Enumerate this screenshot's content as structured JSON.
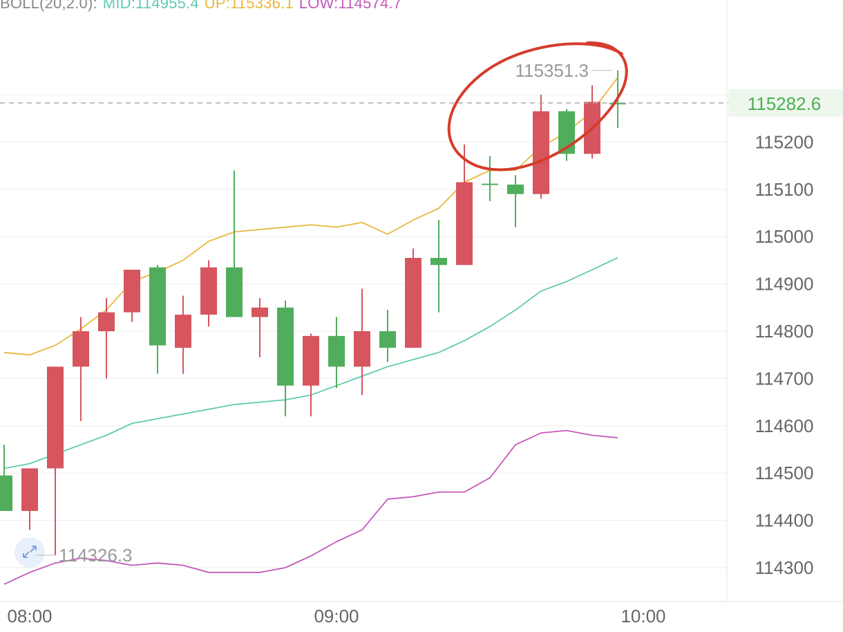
{
  "legend": {
    "indicator": "BOLL(20,2.0):",
    "mid_label": "MID:114955.4",
    "up_label": "UP:115336.1",
    "low_label": "LOW:114574.7"
  },
  "colors": {
    "up_candle": "#50ad5c",
    "down_candle": "#d6555e",
    "mid_line": "#5fc9b1",
    "upper_line": "#e8b73c",
    "lower_line": "#c457bd",
    "grid": "#eeeeee",
    "axis_text": "#666666",
    "last_price": "#4caf50",
    "annotation_circle": "#d63c2a",
    "legend_gray": "#888888"
  },
  "chart_data": {
    "type": "candlestick",
    "timeframe": "5m",
    "y_axis_ticks": [
      114300,
      114400,
      114500,
      114600,
      114700,
      114800,
      114900,
      115000,
      115100,
      115200
    ],
    "y_axis_tick_labels": [
      "114300",
      "114400",
      "114500",
      "114600",
      "114700",
      "114800",
      "114900",
      "115000",
      "115100",
      "115200"
    ],
    "ylim": [
      114260,
      115380
    ],
    "x_axis_ticks": [
      "08:00",
      "09:00",
      "10:00"
    ],
    "x_axis_tick_times_min": [
      480,
      540,
      600
    ],
    "last_price": 115282.6,
    "last_price_label": "115282.6",
    "max_marker": {
      "value": 115351.3,
      "label": "115351.3",
      "time_min": 595
    },
    "min_marker": {
      "value": 114326.3,
      "label": "114326.3",
      "time_min": 480
    },
    "candles": [
      {
        "t": 475,
        "o": 114420,
        "h": 114560,
        "l": 114420,
        "c": 114495
      },
      {
        "t": 480,
        "o": 114510,
        "h": 114510,
        "l": 114380,
        "c": 114420
      },
      {
        "t": 485,
        "o": 114725,
        "h": 114725,
        "l": 114326.3,
        "c": 114510
      },
      {
        "t": 490,
        "o": 114800,
        "h": 114830,
        "l": 114610,
        "c": 114725
      },
      {
        "t": 495,
        "o": 114840,
        "h": 114870,
        "l": 114700,
        "c": 114800
      },
      {
        "t": 500,
        "o": 114930,
        "h": 114930,
        "l": 114820,
        "c": 114840
      },
      {
        "t": 505,
        "o": 114770,
        "h": 114940,
        "l": 114710,
        "c": 114935
      },
      {
        "t": 510,
        "o": 114835,
        "h": 114875,
        "l": 114710,
        "c": 114765
      },
      {
        "t": 515,
        "o": 114935,
        "h": 114950,
        "l": 114810,
        "c": 114835
      },
      {
        "t": 520,
        "o": 114830,
        "h": 115140,
        "l": 114830,
        "c": 114935
      },
      {
        "t": 525,
        "o": 114850,
        "h": 114870,
        "l": 114745,
        "c": 114830
      },
      {
        "t": 530,
        "o": 114685,
        "h": 114865,
        "l": 114620,
        "c": 114850
      },
      {
        "t": 535,
        "o": 114790,
        "h": 114795,
        "l": 114620,
        "c": 114685
      },
      {
        "t": 540,
        "o": 114725,
        "h": 114830,
        "l": 114680,
        "c": 114790
      },
      {
        "t": 545,
        "o": 114800,
        "h": 114890,
        "l": 114665,
        "c": 114725
      },
      {
        "t": 550,
        "o": 114765,
        "h": 114845,
        "l": 114735,
        "c": 114800
      },
      {
        "t": 555,
        "o": 114955,
        "h": 114975,
        "l": 114765,
        "c": 114765
      },
      {
        "t": 560,
        "o": 114940,
        "h": 115035,
        "l": 114840,
        "c": 114955
      },
      {
        "t": 565,
        "o": 115115,
        "h": 115195,
        "l": 114940,
        "c": 114940
      },
      {
        "t": 570,
        "o": 115110,
        "h": 115170,
        "l": 115075,
        "c": 115112
      },
      {
        "t": 575,
        "o": 115090,
        "h": 115130,
        "l": 115020,
        "c": 115110
      },
      {
        "t": 580,
        "o": 115265,
        "h": 115300,
        "l": 115080,
        "c": 115090
      },
      {
        "t": 585,
        "o": 115175,
        "h": 115270,
        "l": 115160,
        "c": 115265
      },
      {
        "t": 590,
        "o": 115285,
        "h": 115320,
        "l": 115165,
        "c": 115175
      },
      {
        "t": 595,
        "o": 115280,
        "h": 115351.3,
        "l": 115230,
        "c": 115282.6
      }
    ],
    "series": [
      {
        "name": "UP",
        "t": [
          475,
          480,
          485,
          490,
          495,
          500,
          505,
          510,
          515,
          520,
          525,
          530,
          535,
          540,
          545,
          550,
          555,
          560,
          565,
          570,
          575,
          580,
          585,
          590,
          595
        ],
        "values": [
          114755,
          114750,
          114770,
          114805,
          114845,
          114905,
          114925,
          114950,
          114990,
          115010,
          115015,
          115020,
          115025,
          115020,
          115030,
          115005,
          115035,
          115060,
          115115,
          115140,
          115140,
          115190,
          115220,
          115265,
          115336.1
        ]
      },
      {
        "name": "MID",
        "t": [
          475,
          480,
          485,
          490,
          495,
          500,
          505,
          510,
          515,
          520,
          525,
          530,
          535,
          540,
          545,
          550,
          555,
          560,
          565,
          570,
          575,
          580,
          585,
          590,
          595
        ],
        "values": [
          114510,
          114520,
          114540,
          114560,
          114580,
          114605,
          114615,
          114625,
          114635,
          114645,
          114650,
          114655,
          114665,
          114685,
          114705,
          114725,
          114740,
          114755,
          114780,
          114810,
          114845,
          114885,
          114905,
          114930,
          114955.4
        ]
      },
      {
        "name": "LOW",
        "t": [
          475,
          480,
          485,
          490,
          495,
          500,
          505,
          510,
          515,
          520,
          525,
          530,
          535,
          540,
          545,
          550,
          555,
          560,
          565,
          570,
          575,
          580,
          585,
          590,
          595
        ],
        "values": [
          114265,
          114290,
          114310,
          114320,
          114315,
          114305,
          114310,
          114305,
          114290,
          114290,
          114290,
          114300,
          114325,
          114355,
          114380,
          114445,
          114450,
          114460,
          114460,
          114490,
          114560,
          114585,
          114590,
          114580,
          114574.7
        ]
      }
    ],
    "title": "",
    "xlabel": "",
    "ylabel": "",
    "grid": true,
    "legend_position": "top-left"
  }
}
